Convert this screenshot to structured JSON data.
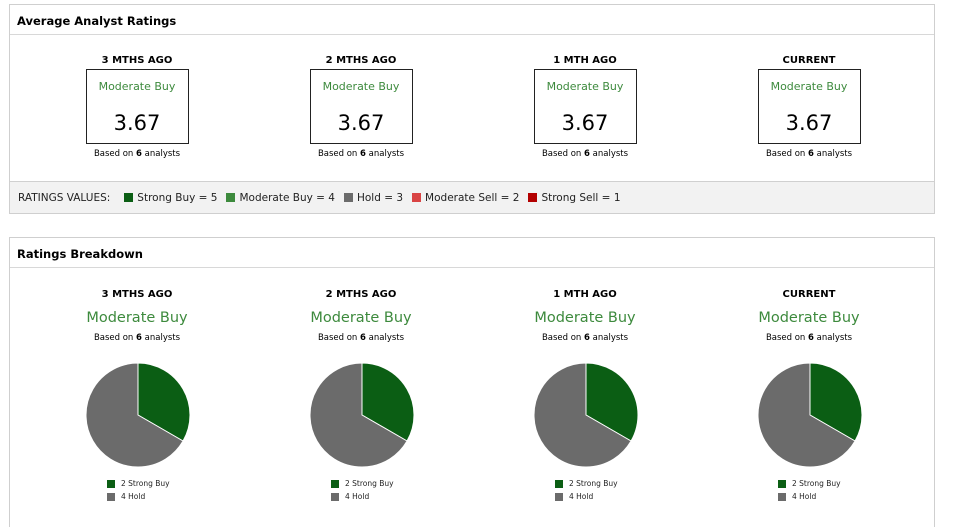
{
  "average_panel": {
    "title": "Average Analyst Ratings",
    "columns": [
      {
        "period": "3 MTHS AGO",
        "rating": "Moderate Buy",
        "score": "3.67",
        "based_prefix": "Based on ",
        "analysts": "6",
        "based_suffix": " analysts"
      },
      {
        "period": "2 MTHS AGO",
        "rating": "Moderate Buy",
        "score": "3.67",
        "based_prefix": "Based on ",
        "analysts": "6",
        "based_suffix": " analysts"
      },
      {
        "period": "1 MTH AGO",
        "rating": "Moderate Buy",
        "score": "3.67",
        "based_prefix": "Based on ",
        "analysts": "6",
        "based_suffix": " analysts"
      },
      {
        "period": "CURRENT",
        "rating": "Moderate Buy",
        "score": "3.67",
        "based_prefix": "Based on ",
        "analysts": "6",
        "based_suffix": " analysts"
      }
    ],
    "legend": {
      "title": "RATINGS VALUES:",
      "items": [
        {
          "label": "Strong Buy = 5",
          "color": "#0b5e14"
        },
        {
          "label": "Moderate Buy = 4",
          "color": "#3d8a3d"
        },
        {
          "label": "Hold = 3",
          "color": "#6b6b6b"
        },
        {
          "label": "Moderate Sell = 2",
          "color": "#d94444"
        },
        {
          "label": "Strong Sell = 1",
          "color": "#b30000"
        }
      ]
    }
  },
  "breakdown_panel": {
    "title": "Ratings Breakdown",
    "columns": [
      {
        "period": "3 MTHS AGO",
        "rating": "Moderate Buy",
        "based_prefix": "Based on ",
        "analysts": "6",
        "based_suffix": " analysts",
        "legend": [
          {
            "label": "2 Strong Buy",
            "color": "#0b5e14"
          },
          {
            "label": "4 Hold",
            "color": "#6b6b6b"
          }
        ]
      },
      {
        "period": "2 MTHS AGO",
        "rating": "Moderate Buy",
        "based_prefix": "Based on ",
        "analysts": "6",
        "based_suffix": " analysts",
        "legend": [
          {
            "label": "2 Strong Buy",
            "color": "#0b5e14"
          },
          {
            "label": "4 Hold",
            "color": "#6b6b6b"
          }
        ]
      },
      {
        "period": "1 MTH AGO",
        "rating": "Moderate Buy",
        "based_prefix": "Based on ",
        "analysts": "6",
        "based_suffix": " analysts",
        "legend": [
          {
            "label": "2 Strong Buy",
            "color": "#0b5e14"
          },
          {
            "label": "4 Hold",
            "color": "#6b6b6b"
          }
        ]
      },
      {
        "period": "CURRENT",
        "rating": "Moderate Buy",
        "based_prefix": "Based on ",
        "analysts": "6",
        "based_suffix": " analysts",
        "legend": [
          {
            "label": "2 Strong Buy",
            "color": "#0b5e14"
          },
          {
            "label": "4 Hold",
            "color": "#6b6b6b"
          }
        ]
      }
    ]
  },
  "chart_data": [
    {
      "type": "pie",
      "categories": [
        "Strong Buy",
        "Hold"
      ],
      "values": [
        2,
        4
      ],
      "colors": [
        "#0b5e14",
        "#6b6b6b"
      ]
    },
    {
      "type": "pie",
      "categories": [
        "Strong Buy",
        "Hold"
      ],
      "values": [
        2,
        4
      ],
      "colors": [
        "#0b5e14",
        "#6b6b6b"
      ]
    },
    {
      "type": "pie",
      "categories": [
        "Strong Buy",
        "Hold"
      ],
      "values": [
        2,
        4
      ],
      "colors": [
        "#0b5e14",
        "#6b6b6b"
      ]
    },
    {
      "type": "pie",
      "categories": [
        "Strong Buy",
        "Hold"
      ],
      "values": [
        2,
        4
      ],
      "colors": [
        "#0b5e14",
        "#6b6b6b"
      ]
    }
  ]
}
